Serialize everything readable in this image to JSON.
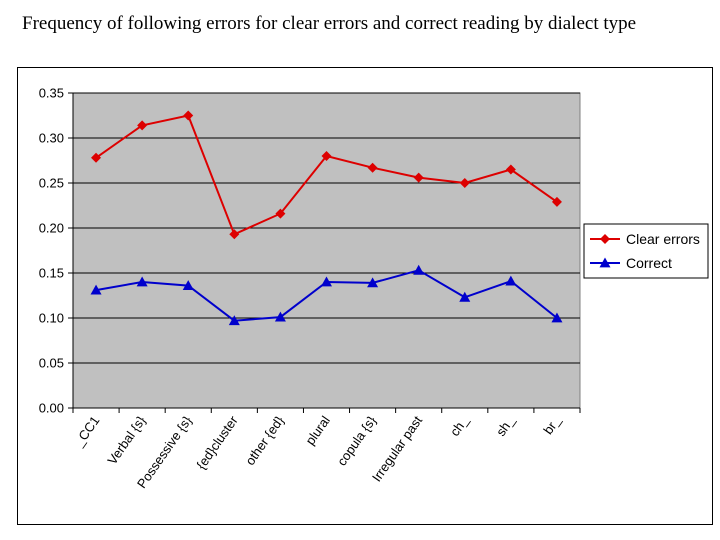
{
  "title": "Frequency of following errors for clear errors and correct reading by dialect type",
  "chart_data": {
    "type": "line",
    "categories": [
      "_CC1",
      "Verbal {s}",
      "Possessive {s}",
      "{ed}cluster",
      "other {ed}",
      "plural",
      "copula {s}",
      "Irregular past",
      "ch_",
      "sh_",
      "br_"
    ],
    "series": [
      {
        "name": "Clear errors",
        "color": "#dd0000",
        "marker": "diamond",
        "values": [
          0.278,
          0.314,
          0.325,
          0.193,
          0.216,
          0.28,
          0.267,
          0.256,
          0.25,
          0.265,
          0.229
        ]
      },
      {
        "name": "Correct",
        "color": "#0000cc",
        "marker": "triangle",
        "values": [
          0.131,
          0.14,
          0.136,
          0.097,
          0.101,
          0.14,
          0.139,
          0.153,
          0.123,
          0.141,
          0.1
        ]
      }
    ],
    "ylim": [
      0,
      0.35
    ],
    "yticks": [
      "0.00",
      "0.05",
      "0.10",
      "0.15",
      "0.20",
      "0.25",
      "0.30",
      "0.35"
    ],
    "grid": true,
    "plot_background": "#c0c0c0",
    "legend": "right"
  }
}
